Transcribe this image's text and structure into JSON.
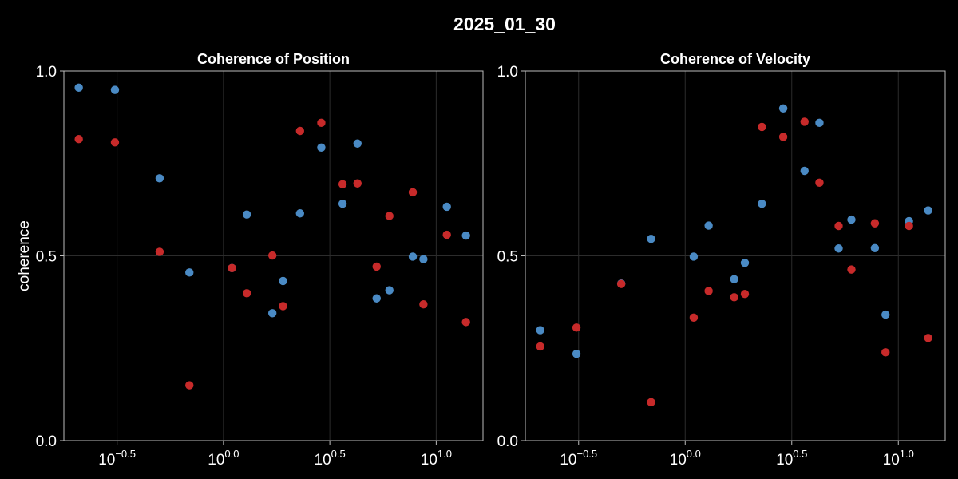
{
  "figure": {
    "title": "2025_01_30",
    "background": "#000000"
  },
  "colors": {
    "blue": "#4a8ac4",
    "red": "#c72a2a",
    "text": "#ffffff",
    "grid": "#2c2c2c",
    "frame": "#bdbdbd"
  },
  "chart_data": [
    {
      "type": "scatter",
      "title": "Coherence of Position",
      "xlabel": "",
      "ylabel": "coherence",
      "xscale": "log10",
      "xlim_log10": [
        -0.75,
        1.22
      ],
      "ylim": [
        0.0,
        1.0
      ],
      "grid": true,
      "x_ticks": [
        {
          "log10": -0.5,
          "base": "10",
          "exp": "−0.5"
        },
        {
          "log10": 0.0,
          "base": "10",
          "exp": "0.0"
        },
        {
          "log10": 0.5,
          "base": "10",
          "exp": "0.5"
        },
        {
          "log10": 1.0,
          "base": "10",
          "exp": "1.0"
        }
      ],
      "y_ticks": [
        {
          "value": 0.0,
          "label": "0.0"
        },
        {
          "value": 0.5,
          "label": "0.5"
        },
        {
          "value": 1.0,
          "label": "1.0"
        }
      ],
      "series": [
        {
          "color": "#4a8ac4",
          "x_log10": [
            -0.68,
            -0.51,
            -0.3,
            -0.16,
            0.04,
            0.11,
            0.23,
            0.28,
            0.36,
            0.46,
            0.56,
            0.63,
            0.72,
            0.78,
            0.89,
            0.94,
            1.05,
            1.14
          ],
          "y": [
            0.955,
            0.949,
            0.71,
            0.455,
            0.467,
            0.612,
            0.345,
            0.432,
            0.615,
            0.793,
            0.641,
            0.804,
            0.385,
            0.407,
            0.498,
            0.491,
            0.633,
            0.555
          ]
        },
        {
          "color": "#c72a2a",
          "x_log10": [
            -0.68,
            -0.51,
            -0.3,
            -0.16,
            0.04,
            0.11,
            0.23,
            0.28,
            0.36,
            0.46,
            0.56,
            0.63,
            0.72,
            0.78,
            0.89,
            0.94,
            1.05,
            1.14
          ],
          "y": [
            0.816,
            0.807,
            0.511,
            0.15,
            0.467,
            0.399,
            0.501,
            0.364,
            0.838,
            0.86,
            0.694,
            0.696,
            0.471,
            0.608,
            0.672,
            0.369,
            0.557,
            0.321
          ]
        }
      ]
    },
    {
      "type": "scatter",
      "title": "Coherence of Velocity",
      "xlabel": "",
      "ylabel": "",
      "xscale": "log10",
      "xlim_log10": [
        -0.75,
        1.22
      ],
      "ylim": [
        0.0,
        1.0
      ],
      "grid": true,
      "x_ticks": [
        {
          "log10": -0.5,
          "base": "10",
          "exp": "−0.5"
        },
        {
          "log10": 0.0,
          "base": "10",
          "exp": "0.0"
        },
        {
          "log10": 0.5,
          "base": "10",
          "exp": "0.5"
        },
        {
          "log10": 1.0,
          "base": "10",
          "exp": "1.0"
        }
      ],
      "y_ticks": [
        {
          "value": 0.0,
          "label": "0.0"
        },
        {
          "value": 0.5,
          "label": "0.5"
        },
        {
          "value": 1.0,
          "label": "1.0"
        }
      ],
      "series": [
        {
          "color": "#4a8ac4",
          "x_log10": [
            -0.68,
            -0.51,
            -0.3,
            -0.16,
            0.04,
            0.11,
            0.23,
            0.28,
            0.36,
            0.46,
            0.56,
            0.63,
            0.72,
            0.78,
            0.89,
            0.94,
            1.05,
            1.14
          ],
          "y": [
            0.299,
            0.235,
            0.425,
            0.546,
            0.498,
            0.582,
            0.437,
            0.481,
            0.641,
            0.899,
            0.73,
            0.86,
            0.52,
            0.598,
            0.521,
            0.341,
            0.594,
            0.623
          ]
        },
        {
          "color": "#c72a2a",
          "x_log10": [
            -0.68,
            -0.51,
            -0.3,
            -0.16,
            0.04,
            0.11,
            0.23,
            0.28,
            0.36,
            0.46,
            0.56,
            0.63,
            0.72,
            0.78,
            0.89,
            0.94,
            1.05,
            1.14
          ],
          "y": [
            0.255,
            0.306,
            0.424,
            0.104,
            0.333,
            0.405,
            0.388,
            0.397,
            0.849,
            0.822,
            0.863,
            0.698,
            0.581,
            0.463,
            0.588,
            0.239,
            0.581,
            0.278
          ]
        }
      ]
    }
  ]
}
